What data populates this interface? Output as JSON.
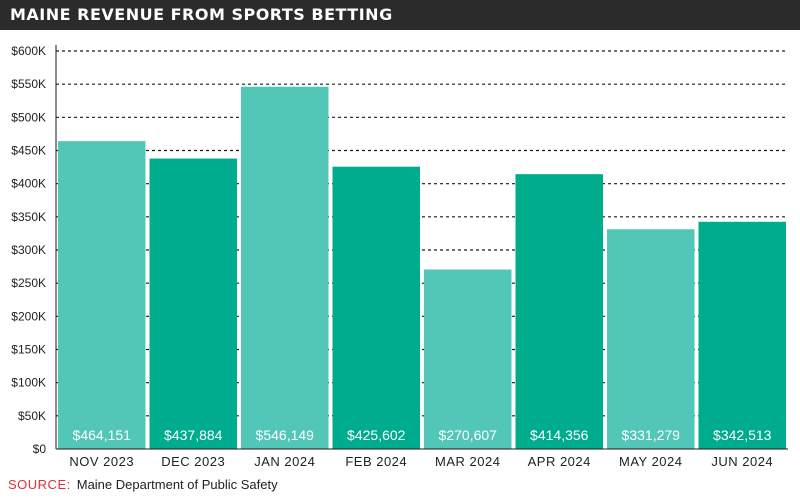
{
  "header": {
    "title": "MAINE REVENUE FROM SPORTS BETTING"
  },
  "footer": {
    "source_label": "SOURCE:",
    "source_text": "Maine Department of Public Safety"
  },
  "chart_data": {
    "type": "bar",
    "title": "MAINE REVENUE FROM SPORTS BETTING",
    "categories": [
      "NOV 2023",
      "DEC 2023",
      "JAN 2024",
      "FEB 2024",
      "MAR 2024",
      "APR 2024",
      "MAY 2024",
      "JUN 2024"
    ],
    "values": [
      464151,
      437884,
      546149,
      425602,
      270607,
      414356,
      331279,
      342513
    ],
    "value_labels": [
      "$464,151",
      "$437,884",
      "$546,149",
      "$425,602",
      "$270,607",
      "$414,356",
      "$331,279",
      "$342,513"
    ],
    "ylim": [
      0,
      600000
    ],
    "yticks": [
      0,
      50000,
      100000,
      150000,
      200000,
      250000,
      300000,
      350000,
      400000,
      450000,
      500000,
      550000,
      600000
    ],
    "ytick_labels": [
      "$0",
      "$50K",
      "$100K",
      "$150K",
      "$200K",
      "$250K",
      "$300K",
      "$350K",
      "$400K",
      "$450K",
      "$500K",
      "$550K",
      "$600K"
    ],
    "xlabel": "",
    "ylabel": "",
    "grid": true,
    "colors": [
      "#52c7b8",
      "#00ac8e"
    ]
  }
}
